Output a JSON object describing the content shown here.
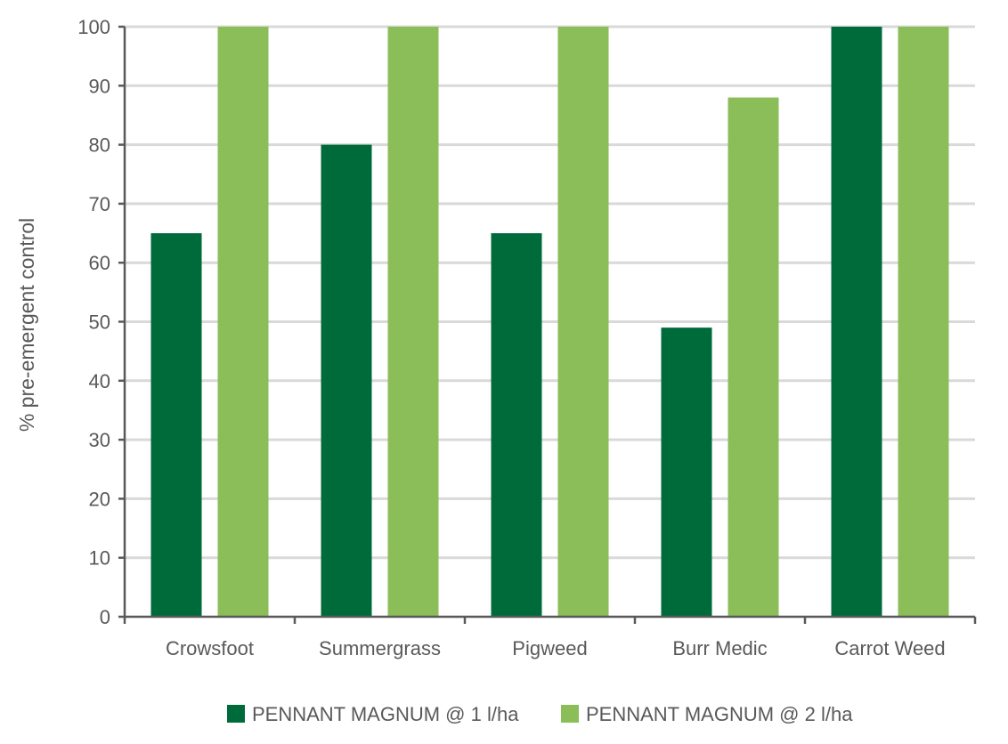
{
  "chart_data": {
    "type": "bar",
    "ylabel": "% pre-emergent control",
    "xlabel": "",
    "title": "",
    "ylim": [
      0,
      100
    ],
    "ytick_step": 10,
    "grid": true,
    "legend_position": "bottom",
    "categories": [
      "Crowsfoot",
      "Summergrass",
      "Pigweed",
      "Burr Medic",
      "Carrot Weed"
    ],
    "series": [
      {
        "name": "PENNANT MAGNUM @ 1 l/ha",
        "color": "#006b3a",
        "values": [
          65,
          80,
          65,
          49,
          100
        ]
      },
      {
        "name": "PENNANT MAGNUM @ 2 l/ha",
        "color": "#8bbe58",
        "values": [
          100,
          100,
          100,
          88,
          100
        ]
      }
    ]
  }
}
